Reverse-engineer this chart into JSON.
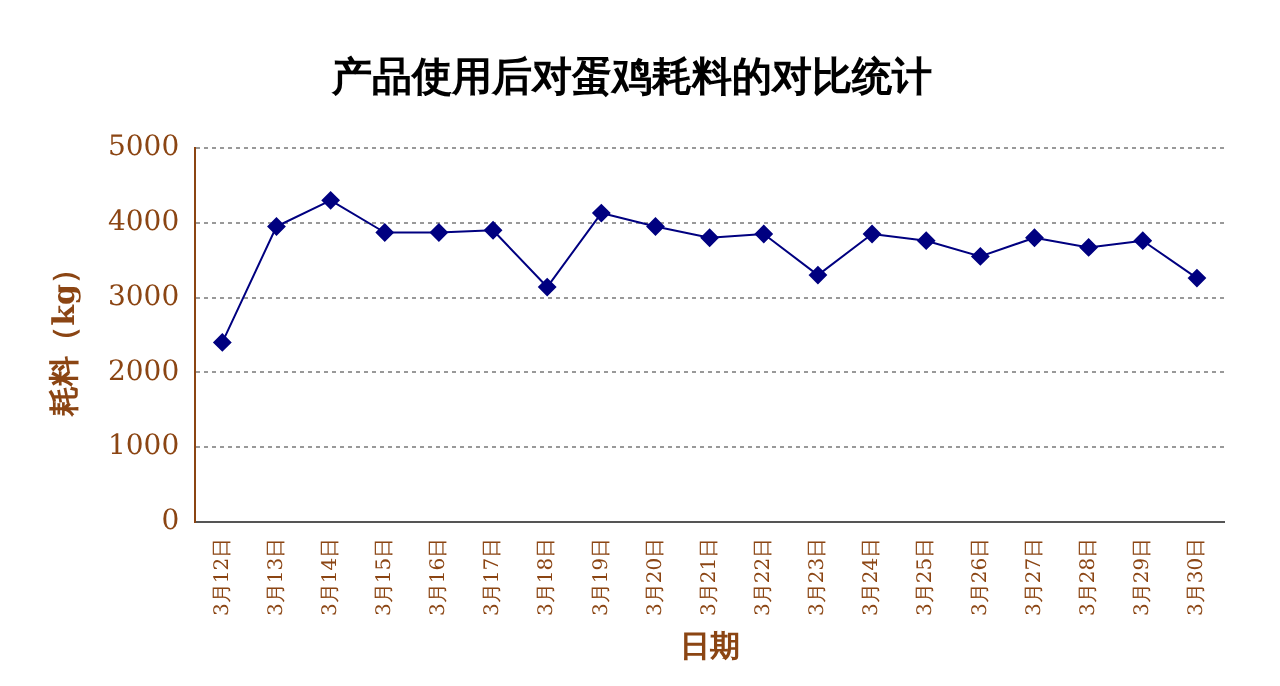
{
  "chart_data": {
    "type": "line",
    "title": "产品使用后对蛋鸡耗料的对比统计",
    "xlabel": "日期",
    "ylabel": "耗料（kg）",
    "categories": [
      "3月12日",
      "3月13日",
      "3月14日",
      "3月15日",
      "3月16日",
      "3月17日",
      "3月18日",
      "3月19日",
      "3月20日",
      "3月21日",
      "3月22日",
      "3月23日",
      "3月24日",
      "3月25日",
      "3月26日",
      "3月27日",
      "3月28日",
      "3月29日",
      "3月30日"
    ],
    "series": [
      {
        "color": "#000080",
        "values": [
          2400,
          3950,
          4300,
          3870,
          3870,
          3900,
          3140,
          4130,
          3950,
          3800,
          3850,
          3300,
          3850,
          3760,
          3550,
          3800,
          3670,
          3760,
          3260
        ]
      }
    ],
    "ylim": [
      0,
      5000
    ],
    "yticks": [
      0,
      1000,
      2000,
      3000,
      4000,
      5000
    ],
    "grid": "y",
    "legend": false,
    "marker": "diamond",
    "line_style": "solid"
  }
}
